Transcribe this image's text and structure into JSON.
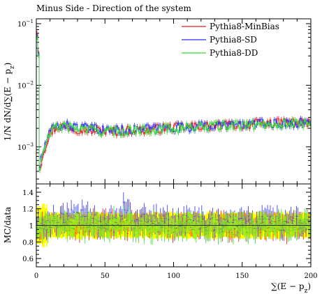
{
  "chart_data": [
    {
      "type": "line",
      "title": "Minus Side - Direction of the system",
      "xlabel": "∑(E − p_z)",
      "ylabel": "1/N dN/d∑(E − p_z)",
      "xlim": [
        0,
        200
      ],
      "ylim": [
        0.00025,
        0.12
      ],
      "yscale": "log",
      "yticks": [
        {
          "v": 0.001,
          "b": "10",
          "e": "−3"
        },
        {
          "v": 0.01,
          "b": "10",
          "e": "−2"
        },
        {
          "v": 0.1,
          "b": "10",
          "e": "−1"
        }
      ],
      "legend": {
        "placement": "top-right"
      },
      "x": [
        1,
        2,
        3,
        4,
        5,
        6,
        7,
        8,
        10,
        12,
        15,
        20,
        25,
        30,
        40,
        50,
        60,
        70,
        80,
        90,
        100,
        110,
        120,
        130,
        140,
        150,
        160,
        170,
        180,
        190,
        200
      ],
      "series": [
        {
          "name": "Pythia8-MinBias",
          "color": "#e41a1c",
          "values": [
            0.07,
            0.0004,
            0.0005,
            0.00065,
            0.0008,
            0.00095,
            0.0011,
            0.0013,
            0.0016,
            0.0019,
            0.0021,
            0.0022,
            0.0021,
            0.002,
            0.0019,
            0.0018,
            0.0018,
            0.0019,
            0.0019,
            0.002,
            0.0021,
            0.0021,
            0.0022,
            0.0022,
            0.0023,
            0.0023,
            0.0024,
            0.0024,
            0.0025,
            0.0025,
            0.0025
          ]
        },
        {
          "name": "Pythia8-SD",
          "color": "#2b2bff",
          "values": [
            0.065,
            0.00045,
            0.00055,
            0.0007,
            0.00085,
            0.001,
            0.0012,
            0.0014,
            0.0017,
            0.002,
            0.0022,
            0.0023,
            0.0022,
            0.0021,
            0.002,
            0.0019,
            0.0019,
            0.0019,
            0.002,
            0.002,
            0.0021,
            0.0021,
            0.0022,
            0.0022,
            0.0023,
            0.0023,
            0.0024,
            0.0024,
            0.0024,
            0.0025,
            0.0025
          ]
        },
        {
          "name": "Pythia8-DD",
          "color": "#33dd33",
          "values": [
            0.06,
            0.0004,
            0.0005,
            0.00065,
            0.0008,
            0.00095,
            0.0011,
            0.0013,
            0.0016,
            0.0019,
            0.0021,
            0.0022,
            0.0021,
            0.002,
            0.0019,
            0.0018,
            0.0018,
            0.0019,
            0.0019,
            0.002,
            0.002,
            0.0021,
            0.0021,
            0.0022,
            0.0022,
            0.0023,
            0.0023,
            0.0024,
            0.0024,
            0.0024,
            0.0025
          ]
        }
      ]
    },
    {
      "type": "line",
      "xlabel": "∑(E − p_z)",
      "ylabel": "MC/data",
      "xlim": [
        0,
        200
      ],
      "ylim": [
        0.5,
        1.5
      ],
      "xticks": [
        0,
        50,
        100,
        150,
        200
      ],
      "yticks": [
        0.6,
        0.8,
        1,
        1.2,
        1.4
      ],
      "reference_line": 1,
      "uncertainty_band": {
        "color": "#ffff00",
        "halfwidth": 0.15
      },
      "x": [
        5,
        10,
        20,
        30,
        40,
        50,
        60,
        65,
        70,
        80,
        90,
        100,
        110,
        120,
        130,
        140,
        150,
        160,
        170,
        180,
        190,
        200
      ],
      "series": [
        {
          "name": "Pythia8-MinBias",
          "color": "#e41a1c",
          "values": [
            1.0,
            1.0,
            1.02,
            0.98,
            1.0,
            1.0,
            1.0,
            0.98,
            1.0,
            1.0,
            1.0,
            1.0,
            1.0,
            1.0,
            1.0,
            1.0,
            1.0,
            1.0,
            1.0,
            1.0,
            1.0,
            1.0
          ]
        },
        {
          "name": "Pythia8-SD",
          "color": "#2b2bff",
          "values": [
            1.0,
            1.05,
            1.08,
            1.12,
            1.06,
            1.05,
            1.1,
            1.25,
            1.05,
            1.08,
            1.06,
            1.05,
            1.04,
            1.05,
            1.03,
            1.05,
            1.04,
            1.02,
            1.03,
            1.02,
            1.02,
            1.0
          ]
        },
        {
          "name": "Pythia8-DD",
          "color": "#33dd33",
          "values": [
            0.95,
            0.98,
            1.02,
            1.0,
            0.98,
            1.0,
            1.02,
            1.0,
            0.98,
            0.98,
            0.97,
            0.98,
            0.99,
            0.98,
            0.99,
            0.98,
            0.98,
            0.99,
            0.99,
            0.99,
            0.99,
            1.0
          ]
        }
      ]
    }
  ]
}
